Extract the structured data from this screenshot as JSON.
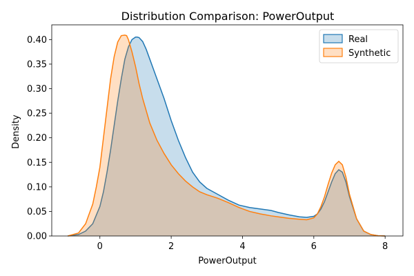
{
  "chart_data": {
    "type": "area",
    "title": "Distribution Comparison: PowerOutput",
    "xlabel": "PowerOutput",
    "ylabel": "Density",
    "xlim": [
      -1.35,
      8.5
    ],
    "ylim": [
      0,
      0.43
    ],
    "xticks": [
      0,
      2,
      4,
      6,
      8
    ],
    "yticks": [
      0.0,
      0.05,
      0.1,
      0.15,
      0.2,
      0.25,
      0.3,
      0.35,
      0.4
    ],
    "grid": false,
    "legend_position": "top-right",
    "series": [
      {
        "name": "Real",
        "color": "#1f77b4",
        "x": [
          -0.9,
          -0.6,
          -0.4,
          -0.2,
          0.0,
          0.1,
          0.2,
          0.3,
          0.4,
          0.5,
          0.6,
          0.7,
          0.8,
          0.9,
          1.0,
          1.05,
          1.1,
          1.2,
          1.3,
          1.4,
          1.5,
          1.6,
          1.8,
          2.0,
          2.2,
          2.4,
          2.6,
          2.8,
          3.0,
          3.3,
          3.6,
          3.9,
          4.2,
          4.5,
          4.8,
          5.0,
          5.3,
          5.6,
          5.8,
          6.0,
          6.1,
          6.2,
          6.3,
          6.4,
          6.5,
          6.6,
          6.7,
          6.8,
          6.9,
          7.0,
          7.2,
          7.4,
          7.6,
          7.8,
          8.0
        ],
        "values": [
          0.0,
          0.003,
          0.01,
          0.025,
          0.06,
          0.09,
          0.13,
          0.175,
          0.225,
          0.275,
          0.32,
          0.36,
          0.385,
          0.4,
          0.405,
          0.405,
          0.404,
          0.396,
          0.38,
          0.36,
          0.34,
          0.32,
          0.28,
          0.235,
          0.195,
          0.16,
          0.13,
          0.11,
          0.097,
          0.085,
          0.073,
          0.063,
          0.058,
          0.055,
          0.052,
          0.048,
          0.043,
          0.039,
          0.038,
          0.04,
          0.045,
          0.055,
          0.07,
          0.09,
          0.11,
          0.127,
          0.135,
          0.13,
          0.11,
          0.08,
          0.035,
          0.01,
          0.003,
          0.0005,
          0.0
        ]
      },
      {
        "name": "Synthetic",
        "color": "#ff7f0e",
        "x": [
          -0.9,
          -0.6,
          -0.4,
          -0.2,
          -0.1,
          0.0,
          0.1,
          0.2,
          0.3,
          0.4,
          0.5,
          0.6,
          0.7,
          0.75,
          0.8,
          0.9,
          1.0,
          1.1,
          1.2,
          1.4,
          1.6,
          1.8,
          2.0,
          2.2,
          2.4,
          2.6,
          2.8,
          3.0,
          3.3,
          3.6,
          3.9,
          4.2,
          4.5,
          4.8,
          5.0,
          5.3,
          5.6,
          5.8,
          6.0,
          6.1,
          6.2,
          6.3,
          6.4,
          6.5,
          6.6,
          6.7,
          6.8,
          6.9,
          7.0,
          7.2,
          7.4,
          7.6,
          7.8,
          8.0
        ],
        "values": [
          0.0,
          0.006,
          0.025,
          0.065,
          0.1,
          0.14,
          0.2,
          0.26,
          0.32,
          0.365,
          0.395,
          0.408,
          0.409,
          0.408,
          0.4,
          0.375,
          0.345,
          0.31,
          0.28,
          0.23,
          0.195,
          0.168,
          0.145,
          0.127,
          0.112,
          0.1,
          0.09,
          0.084,
          0.077,
          0.068,
          0.058,
          0.05,
          0.045,
          0.041,
          0.039,
          0.036,
          0.034,
          0.033,
          0.037,
          0.045,
          0.06,
          0.08,
          0.105,
          0.128,
          0.145,
          0.152,
          0.145,
          0.12,
          0.085,
          0.035,
          0.01,
          0.003,
          0.0005,
          0.0
        ]
      }
    ]
  }
}
